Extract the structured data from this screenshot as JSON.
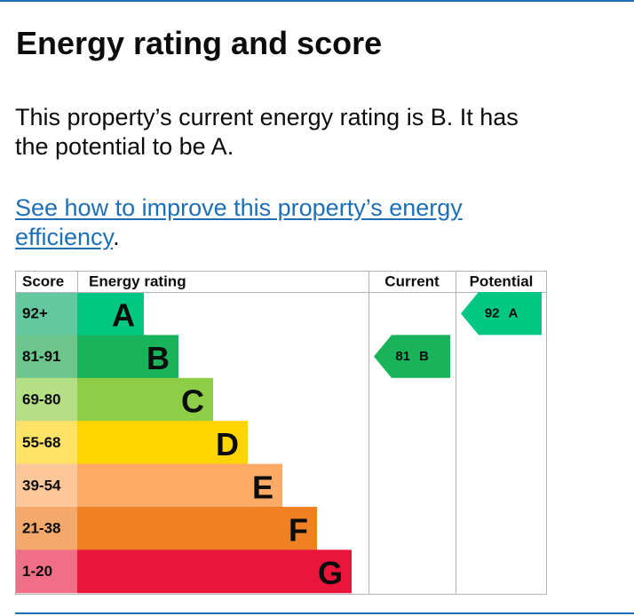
{
  "page": {
    "title": "Energy rating and score",
    "intro": "This property’s current energy rating is B. It has the potential to be A.",
    "link_text": "See how to improve this property’s energy efficiency",
    "link_suffix": "."
  },
  "chart_data": {
    "type": "bar",
    "headers": {
      "score": "Score",
      "rating": "Energy rating",
      "current": "Current",
      "potential": "Potential"
    },
    "bands": [
      {
        "letter": "A",
        "range": "92+",
        "color": "#00c781",
        "score_bg": "#64c7a0",
        "level": 1
      },
      {
        "letter": "B",
        "range": "81-91",
        "color": "#19b459",
        "score_bg": "#6dc68b",
        "level": 2
      },
      {
        "letter": "C",
        "range": "69-80",
        "color": "#8dce46",
        "score_bg": "#b5df85",
        "level": 3
      },
      {
        "letter": "D",
        "range": "55-68",
        "color": "#ffd500",
        "score_bg": "#ffe266",
        "level": 4
      },
      {
        "letter": "E",
        "range": "39-54",
        "color": "#fcaa65",
        "score_bg": "#fdc79a",
        "level": 5
      },
      {
        "letter": "F",
        "range": "21-38",
        "color": "#ef8023",
        "score_bg": "#f4a96a",
        "level": 6
      },
      {
        "letter": "G",
        "range": "1-20",
        "color": "#e9153b",
        "score_bg": "#f06f86",
        "level": 7
      }
    ],
    "current": {
      "score": "81",
      "letter": "B",
      "band_index": 1,
      "color": "#19b459"
    },
    "potential": {
      "score": "92",
      "letter": "A",
      "band_index": 0,
      "color": "#00c781"
    }
  }
}
